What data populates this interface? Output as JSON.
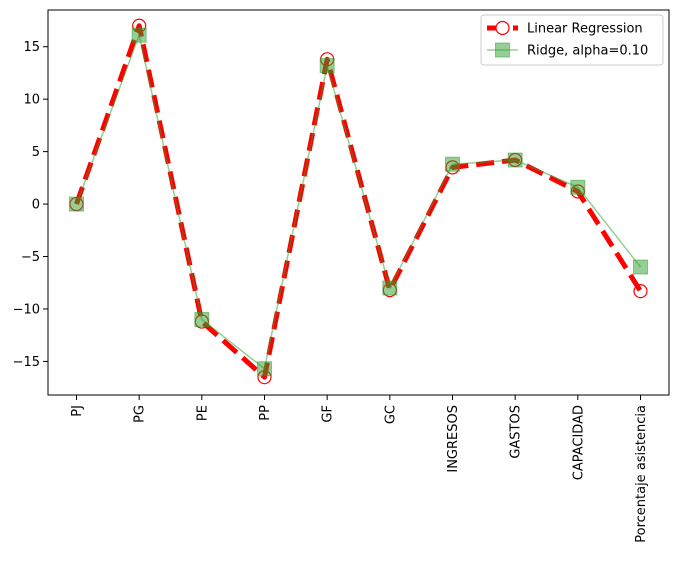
{
  "chart_data": {
    "type": "line",
    "title": "",
    "xlabel": "",
    "ylabel": "",
    "categories": [
      "PJ",
      "PG",
      "PE",
      "PP",
      "GF",
      "GC",
      "INGRESOS",
      "GASTOS",
      "CAPACIDAD",
      "Porcentaje asistencia"
    ],
    "ylim": [
      -18.2,
      18.5
    ],
    "yticks": [
      -15,
      -10,
      -5,
      0,
      5,
      10,
      15
    ],
    "ytick_labels": [
      "−15",
      "−10",
      "−5",
      "0",
      "5",
      "10",
      "15"
    ],
    "grid": false,
    "legend_position": "top-right",
    "series": [
      {
        "name": "Linear Regression",
        "color": "#ff0000",
        "line_style": "dashed",
        "marker": "open-circle",
        "values": [
          0.0,
          17.0,
          -11.2,
          -16.5,
          13.8,
          -8.2,
          3.5,
          4.2,
          1.2,
          -8.3
        ]
      },
      {
        "name": "Ridge, alpha=0.10",
        "color": "#2ca02c",
        "line_style": "solid",
        "marker": "square",
        "values": [
          0.0,
          16.1,
          -11.0,
          -15.7,
          13.2,
          -8.0,
          3.8,
          4.2,
          1.6,
          -6.0
        ]
      }
    ]
  }
}
